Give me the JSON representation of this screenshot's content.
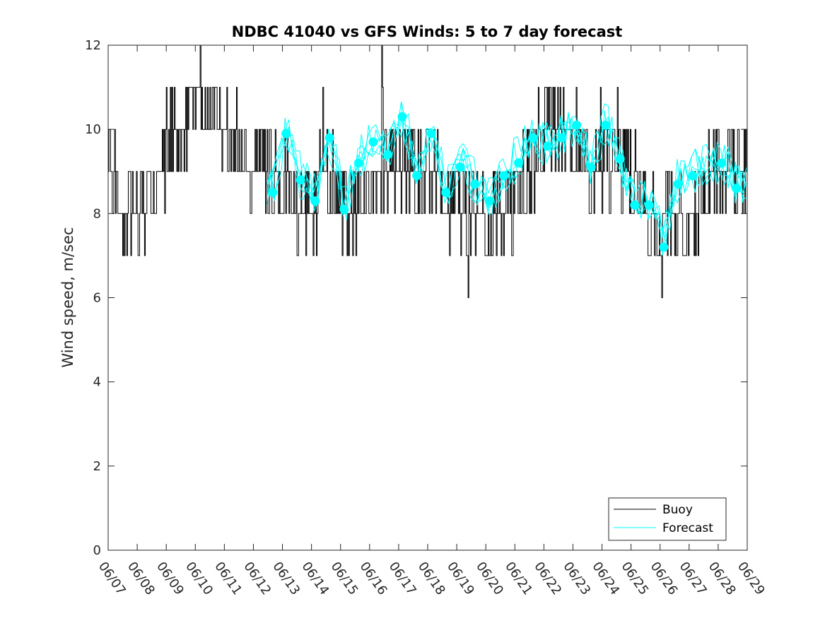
{
  "chart_data": {
    "type": "line",
    "title": "NDBC 41040 vs GFS Winds: 5 to 7 day forecast",
    "xlabel": "",
    "ylabel": "Wind speed, m/sec",
    "xlim": [
      "06/07",
      "06/29"
    ],
    "ylim": [
      0,
      12
    ],
    "yticks": [
      0,
      2,
      4,
      6,
      8,
      10,
      12
    ],
    "xtick_labels": [
      "06/07",
      "06/08",
      "06/09",
      "06/10",
      "06/11",
      "06/12",
      "06/13",
      "06/14",
      "06/15",
      "06/16",
      "06/17",
      "06/18",
      "06/19",
      "06/20",
      "06/21",
      "06/22",
      "06/23",
      "06/24",
      "06/25",
      "06/26",
      "06/27",
      "06/28",
      "06/29"
    ],
    "grid": false,
    "legend": {
      "placement": "bottom-right",
      "entries": [
        "Buoy",
        "Forecast"
      ]
    },
    "colors": {
      "buoy": "#000000",
      "forecast": "#00ffff",
      "axis": "#262626"
    },
    "buoy_trend": {
      "x": [
        "06/07",
        "06/07 12:00",
        "06/08",
        "06/08 12:00",
        "06/09",
        "06/09 12:00",
        "06/10",
        "06/10 12:00",
        "06/11",
        "06/11 12:00",
        "06/12",
        "06/12 12:00",
        "06/13",
        "06/13 12:00",
        "06/14",
        "06/14 12:00",
        "06/15",
        "06/15 12:00",
        "06/16",
        "06/16 12:00",
        "06/17",
        "06/17 12:00",
        "06/18",
        "06/18 12:00",
        "06/19",
        "06/19 12:00",
        "06/20",
        "06/20 12:00",
        "06/21",
        "06/21 12:00",
        "06/22",
        "06/22 12:00",
        "06/23",
        "06/23 12:00",
        "06/24",
        "06/24 12:00",
        "06/25",
        "06/25 12:00",
        "06/26",
        "06/26 12:00",
        "06/27",
        "06/27 12:00",
        "06/28",
        "06/28 12:00",
        "06/29"
      ],
      "y": [
        9.0,
        8.2,
        8.3,
        8.5,
        9.5,
        10.0,
        10.4,
        10.8,
        10.0,
        9.6,
        9.3,
        9.0,
        8.7,
        8.2,
        8.3,
        8.6,
        8.3,
        8.5,
        8.8,
        9.1,
        9.0,
        9.3,
        8.9,
        8.6,
        8.5,
        8.3,
        7.8,
        8.2,
        8.5,
        8.9,
        9.9,
        10.2,
        9.7,
        9.4,
        9.2,
        9.5,
        8.6,
        8.3,
        7.4,
        8.0,
        7.6,
        8.4,
        9.0,
        9.4,
        9.1
      ]
    },
    "forecast_markers": {
      "x": [
        "06/12 16:00",
        "06/13 03:00",
        "06/13 15:00",
        "06/14 03:00",
        "06/14 15:00",
        "06/15 03:00",
        "06/15 15:00",
        "06/16 03:00",
        "06/16 15:00",
        "06/17 03:00",
        "06/17 15:00",
        "06/18 03:00",
        "06/18 15:00",
        "06/19 03:00",
        "06/19 15:00",
        "06/20 03:00",
        "06/20 15:00",
        "06/21 03:00",
        "06/21 15:00",
        "06/22 03:00",
        "06/22 15:00",
        "06/23 03:00",
        "06/23 15:00",
        "06/24 03:00",
        "06/24 15:00",
        "06/25 03:00",
        "06/25 15:00",
        "06/26 03:00",
        "06/26 15:00",
        "06/27 03:00",
        "06/28 03:00",
        "06/28 15:00"
      ],
      "y": [
        8.5,
        9.9,
        8.8,
        8.3,
        9.8,
        8.1,
        9.2,
        9.7,
        9.4,
        10.3,
        8.9,
        9.9,
        8.5,
        9.1,
        8.7,
        8.3,
        8.9,
        9.2,
        9.8,
        9.6,
        9.8,
        10.1,
        9.1,
        10.1,
        9.3,
        8.2,
        8.2,
        7.2,
        8.7,
        8.9,
        9.2,
        8.6
      ]
    }
  }
}
